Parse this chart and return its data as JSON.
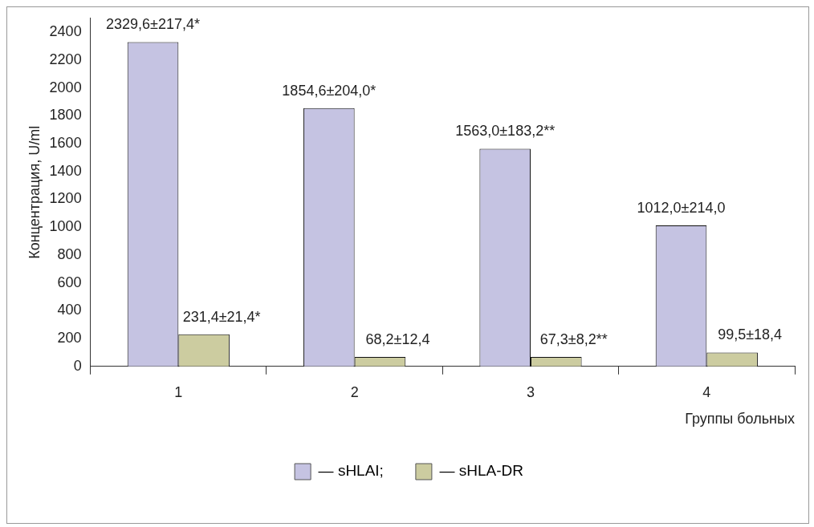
{
  "chart_data": {
    "type": "bar",
    "ylabel": "Концентрация, U/ml",
    "xlabel": "Группы больных",
    "categories": [
      "1",
      "2",
      "3",
      "4"
    ],
    "series": [
      {
        "name": "— sHLAI;",
        "color": "#c5c3e2",
        "values": [
          2329.6,
          1854.6,
          1563.0,
          1012.0
        ],
        "value_labels": [
          "2329,6±217,4*",
          "1854,6±204,0*",
          "1563,0±183,2**",
          "1012,0±214,0"
        ]
      },
      {
        "name": "— sHLA-DR",
        "color": "#cccca0",
        "values": [
          231.4,
          68.2,
          67.3,
          99.5
        ],
        "value_labels": [
          "231,4±21,4*",
          "68,2±12,4",
          "67,3±8,2**",
          "99,5±18,4"
        ]
      }
    ],
    "ylim": [
      0,
      2500
    ],
    "yticks": [
      0,
      200,
      400,
      600,
      800,
      1000,
      1200,
      1400,
      1600,
      1800,
      2000,
      2200,
      2400
    ],
    "grid": false,
    "legend": "bottom"
  }
}
